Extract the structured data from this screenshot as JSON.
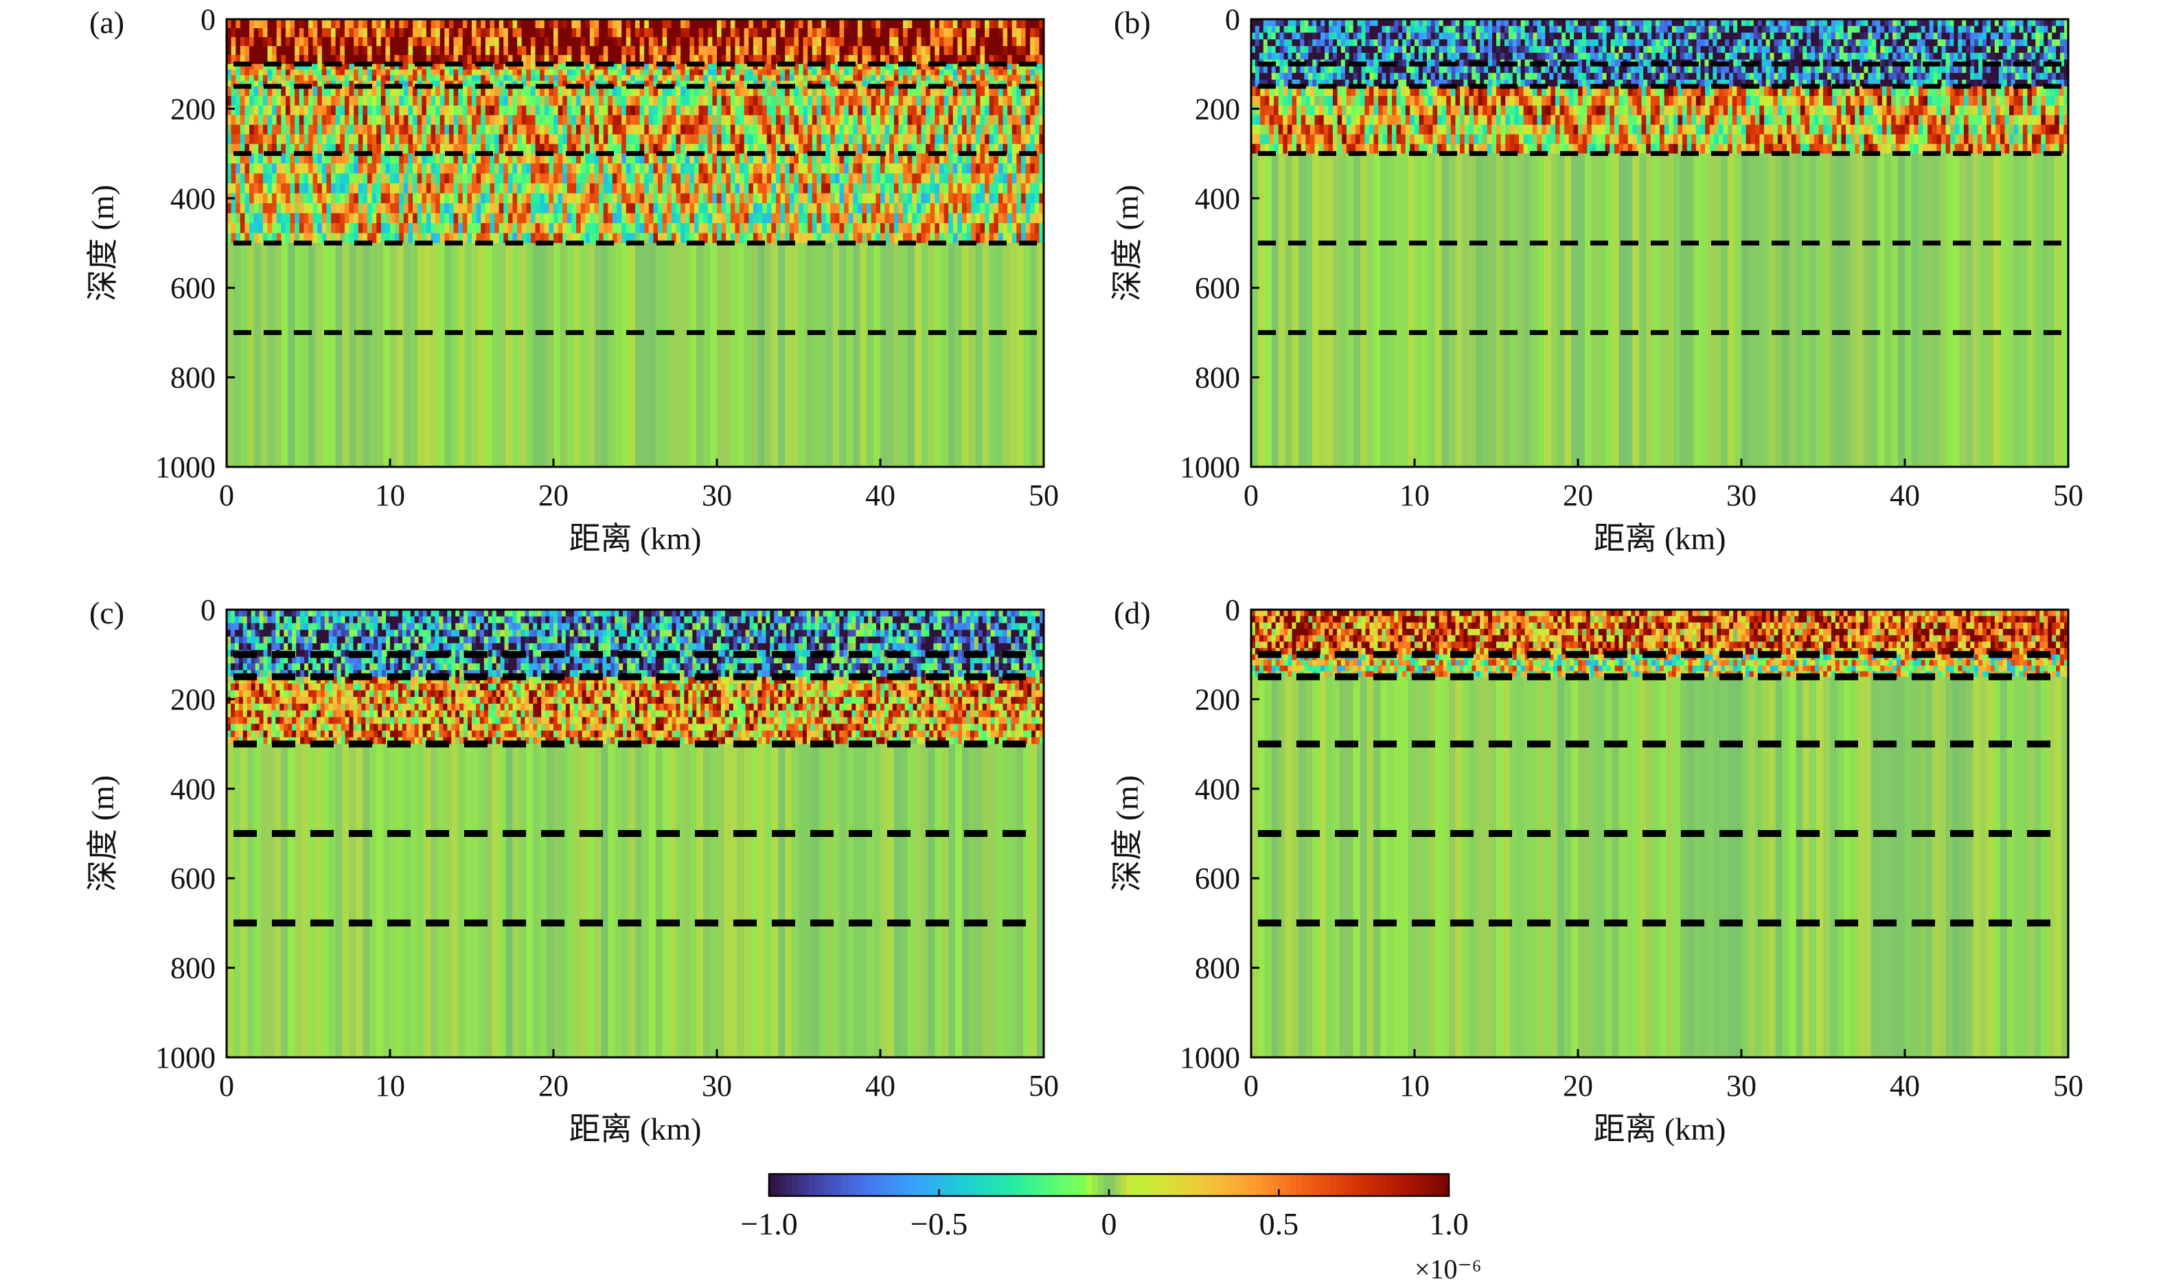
{
  "chart_data": [
    {
      "type": "heatmap",
      "panel_label": "(a)",
      "xlabel": "距离 (km)",
      "ylabel": "深度 (m)",
      "xlim": [
        0,
        50
      ],
      "ylim": [
        0,
        1000
      ],
      "y_inverted": true,
      "xticks": [
        "0",
        "10",
        "20",
        "30",
        "40",
        "50"
      ],
      "yticks": [
        "0",
        "200",
        "400",
        "600",
        "800",
        "1000"
      ],
      "interfaces_m": [
        100,
        150,
        300,
        500,
        700
      ],
      "zones": [
        {
          "from_m": 0,
          "to_m": 100,
          "level": 0.85,
          "texture": "striped"
        },
        {
          "from_m": 100,
          "to_m": 150,
          "level": 0.2,
          "texture": "striped"
        },
        {
          "from_m": 150,
          "to_m": 300,
          "level": 0.25,
          "texture": "striped"
        },
        {
          "from_m": 300,
          "to_m": 500,
          "level": 0.15,
          "texture": "striped"
        },
        {
          "from_m": 500,
          "to_m": 1000,
          "level": 0.0,
          "texture": "smooth"
        }
      ]
    },
    {
      "type": "heatmap",
      "panel_label": "(b)",
      "xlabel": "距离 (km)",
      "ylabel": "深度 (m)",
      "xlim": [
        0,
        50
      ],
      "ylim": [
        0,
        1000
      ],
      "y_inverted": true,
      "xticks": [
        "0",
        "10",
        "20",
        "30",
        "40",
        "50"
      ],
      "yticks": [
        "0",
        "200",
        "400",
        "600",
        "800",
        "1000"
      ],
      "interfaces_m": [
        100,
        150,
        300,
        500,
        700
      ],
      "zones": [
        {
          "from_m": 0,
          "to_m": 150,
          "level": -0.7,
          "texture": "noisy"
        },
        {
          "from_m": 150,
          "to_m": 300,
          "level": 0.3,
          "texture": "striped"
        },
        {
          "from_m": 300,
          "to_m": 1000,
          "level": 0.0,
          "texture": "smooth"
        }
      ]
    },
    {
      "type": "heatmap",
      "panel_label": "(c)",
      "xlabel": "距离 (km)",
      "ylabel": "深度 (m)",
      "xlim": [
        0,
        50
      ],
      "ylim": [
        0,
        1000
      ],
      "y_inverted": true,
      "xticks": [
        "0",
        "10",
        "20",
        "30",
        "40",
        "50"
      ],
      "yticks": [
        "0",
        "200",
        "400",
        "600",
        "800",
        "1000"
      ],
      "interfaces_m": [
        100,
        150,
        300,
        500,
        700
      ],
      "zones": [
        {
          "from_m": 0,
          "to_m": 150,
          "level": -0.6,
          "texture": "noisy"
        },
        {
          "from_m": 150,
          "to_m": 300,
          "level": 0.4,
          "texture": "noisy"
        },
        {
          "from_m": 300,
          "to_m": 1000,
          "level": 0.0,
          "texture": "smooth"
        }
      ]
    },
    {
      "type": "heatmap",
      "panel_label": "(d)",
      "xlabel": "距离 (km)",
      "ylabel": "深度 (m)",
      "xlim": [
        0,
        50
      ],
      "ylim": [
        0,
        1000
      ],
      "y_inverted": true,
      "xticks": [
        "0",
        "10",
        "20",
        "30",
        "40",
        "50"
      ],
      "yticks": [
        "0",
        "200",
        "400",
        "600",
        "800",
        "1000"
      ],
      "interfaces_m": [
        100,
        150,
        300,
        500,
        700
      ],
      "zones": [
        {
          "from_m": 0,
          "to_m": 100,
          "level": 0.6,
          "texture": "noisy"
        },
        {
          "from_m": 100,
          "to_m": 150,
          "level": 0.1,
          "texture": "noisy"
        },
        {
          "from_m": 150,
          "to_m": 1000,
          "level": 0.0,
          "texture": "smooth"
        }
      ]
    }
  ],
  "colorbar": {
    "range": [
      -1.0,
      1.0
    ],
    "tick_labels": [
      "−1.0",
      "−0.5",
      "0",
      "0.5",
      "1.0"
    ],
    "tick_values": [
      -1.0,
      -0.5,
      0,
      0.5,
      1.0
    ],
    "scale_label": "×10⁻⁶",
    "colormap": [
      "#30123b",
      "#4145ab",
      "#4675ed",
      "#39a2fc",
      "#1bcfd4",
      "#24eca6",
      "#61fc6c",
      "#a4fc3b",
      "#d1e834",
      "#f3c63a",
      "#fe9b2d",
      "#f36315",
      "#d93806",
      "#b11901",
      "#7a0402"
    ],
    "zero_color": "#7cc46c"
  },
  "colors": {
    "interface_line": "#000000",
    "axis": "#000000"
  }
}
